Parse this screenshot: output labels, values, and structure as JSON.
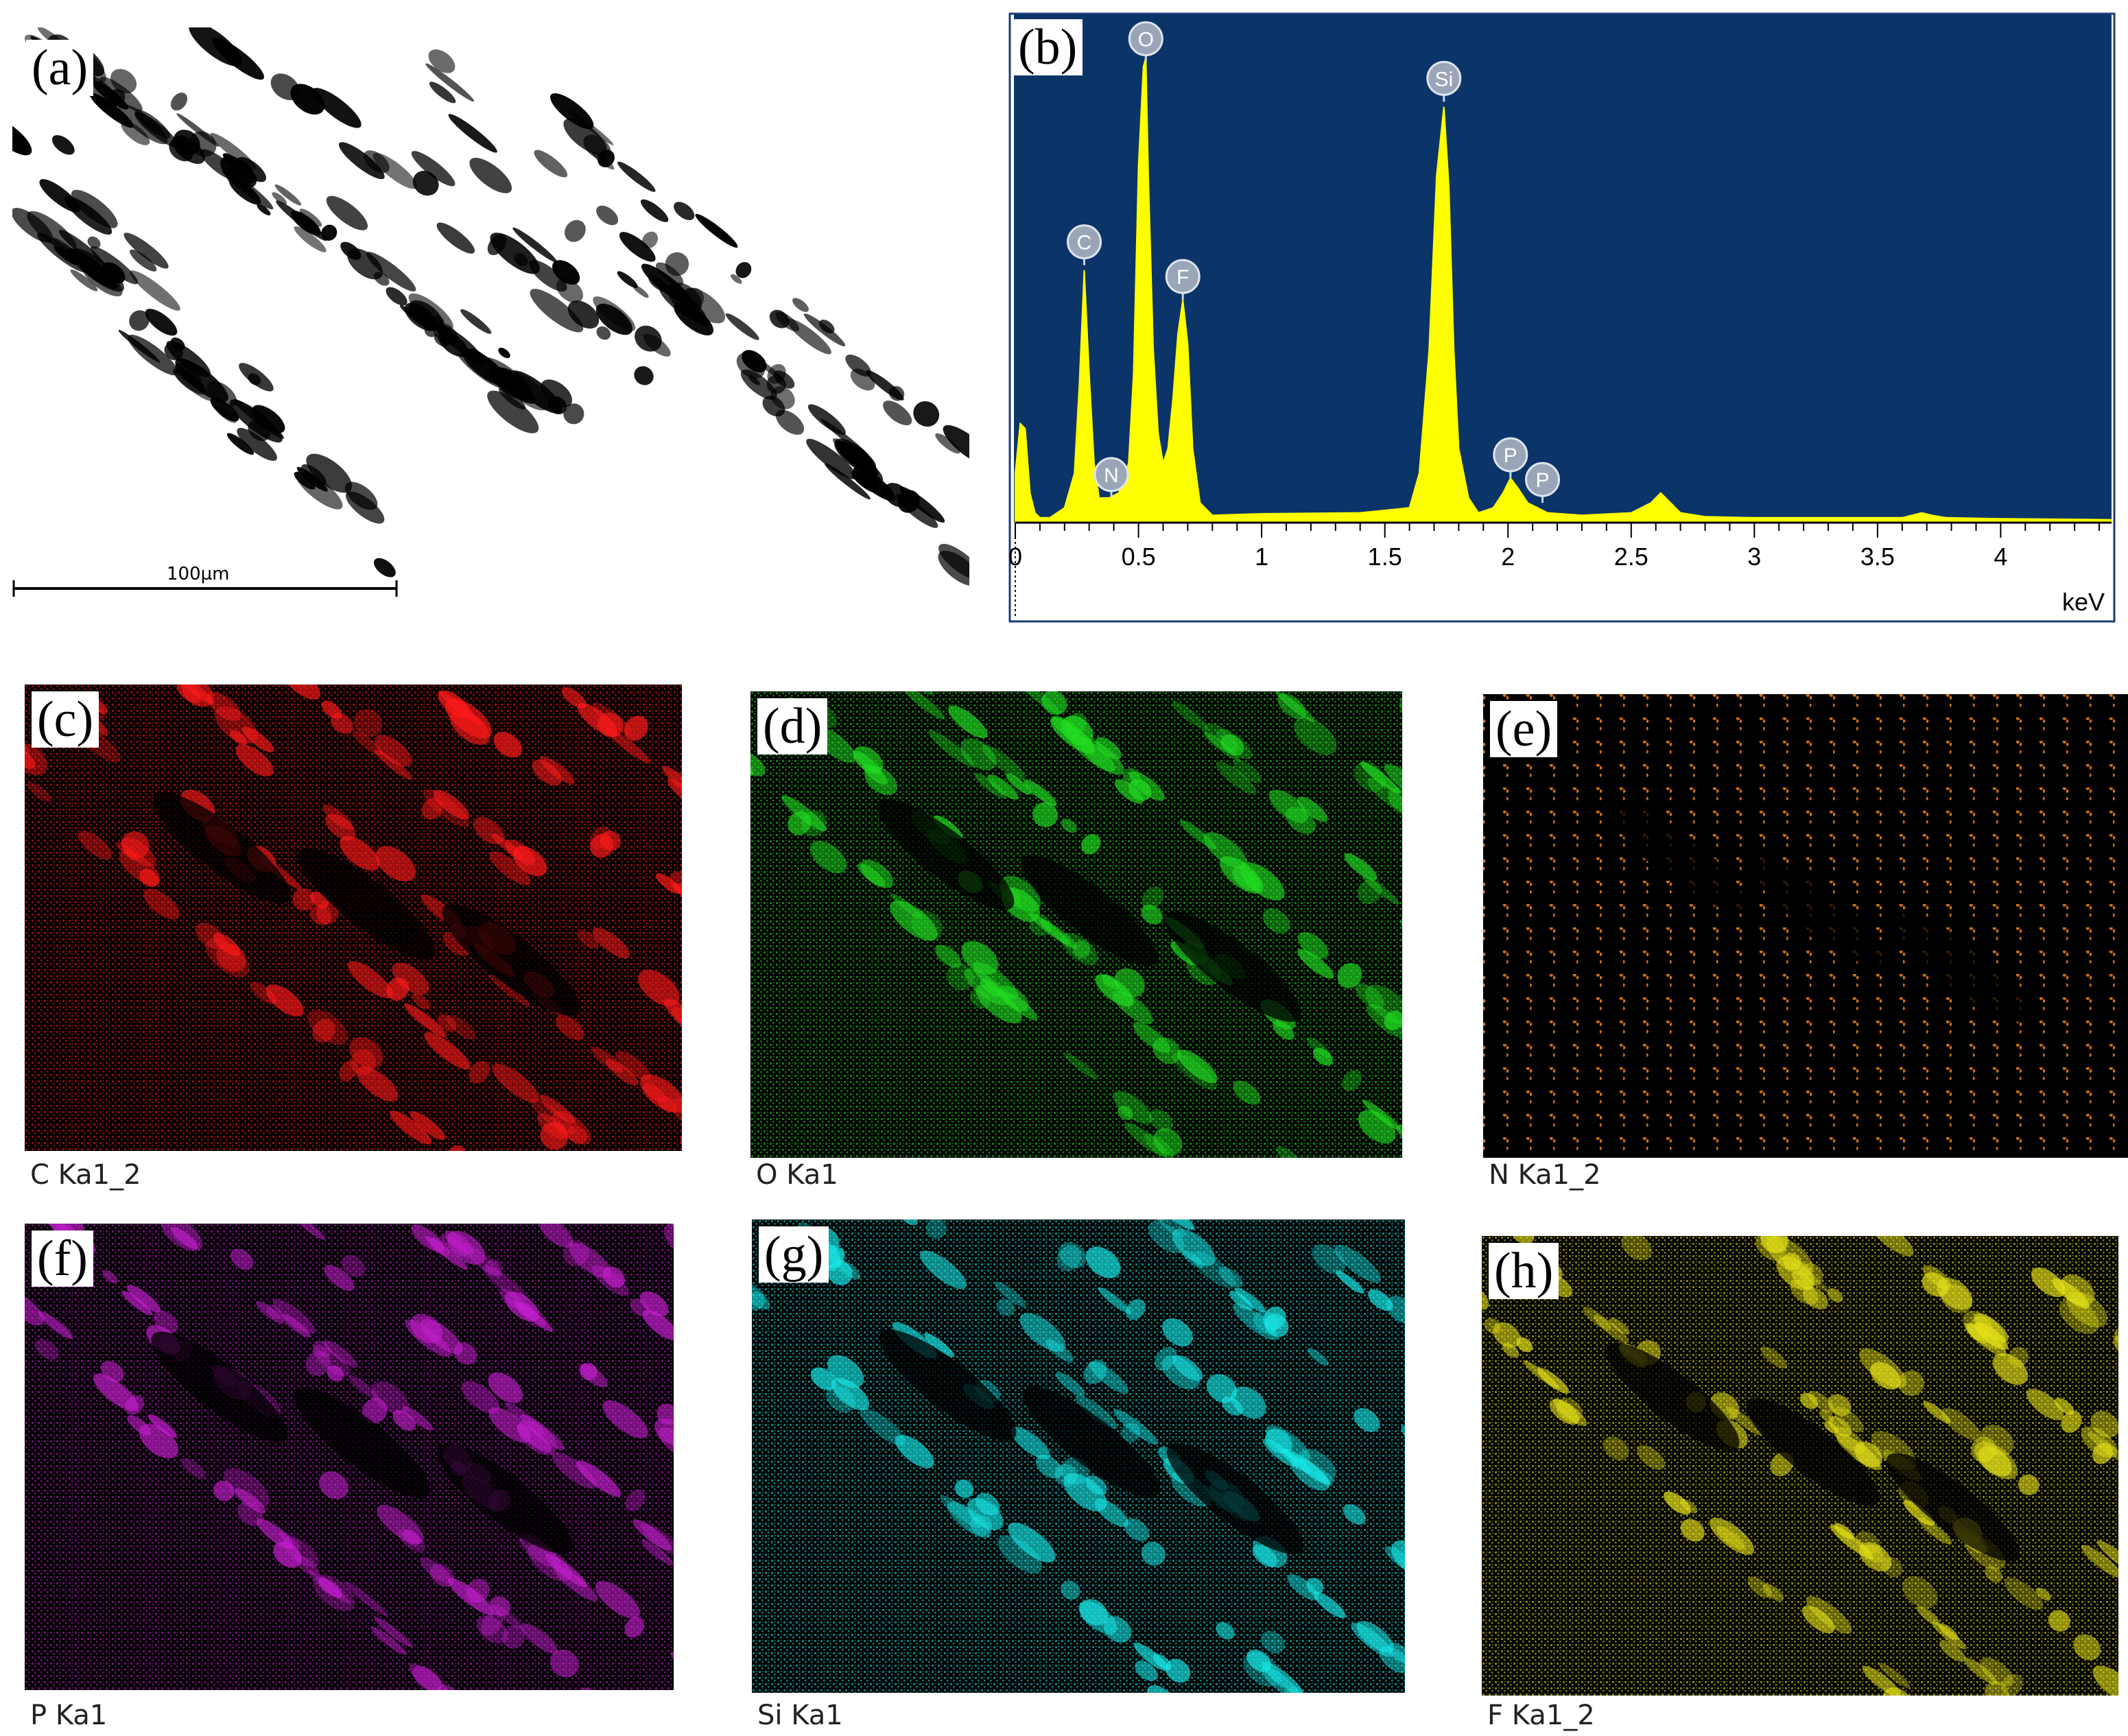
{
  "panel_labels": {
    "a": "(a)",
    "b": "(b)",
    "c": "(c)",
    "d": "(d)",
    "e": "(e)",
    "f": "(f)",
    "g": "(g)",
    "h": "(h)"
  },
  "sem": {
    "scale_bar_label": "100µm"
  },
  "maps": [
    {
      "key": "c",
      "caption": "C Ka1_2",
      "color": "#ff1a1a"
    },
    {
      "key": "d",
      "caption": "O Ka1",
      "color": "#22dd22"
    },
    {
      "key": "e",
      "caption": "N Ka1_2",
      "color": "#e07a10"
    },
    {
      "key": "f",
      "caption": "P Ka1",
      "color": "#c61fd0"
    },
    {
      "key": "g",
      "caption": "Si Ka1",
      "color": "#19e6e6"
    },
    {
      "key": "h",
      "caption": "F Ka1_2",
      "color": "#e6e21a"
    }
  ],
  "chart_data": {
    "type": "area",
    "xlabel": "keV",
    "xlim": [
      0,
      4.45
    ],
    "x_ticks": [
      "0",
      "0.5",
      "1",
      "1.5",
      "2",
      "2.5",
      "3",
      "3.5",
      "4"
    ],
    "background_color": "#0b3468",
    "fill_color": "#ffff00",
    "peaks": [
      {
        "label": "C",
        "x": 0.28,
        "y": 0.52
      },
      {
        "label": "N",
        "x": 0.39,
        "y": 0.05
      },
      {
        "label": "O",
        "x": 0.53,
        "y": 0.93
      },
      {
        "label": "F",
        "x": 0.68,
        "y": 0.45
      },
      {
        "label": "Si",
        "x": 1.74,
        "y": 0.85
      },
      {
        "label": "P",
        "x": 2.01,
        "y": 0.09
      },
      {
        "label": "P",
        "x": 2.14,
        "y": 0.04
      }
    ],
    "spectrum": {
      "x": [
        0,
        0.02,
        0.04,
        0.06,
        0.08,
        0.1,
        0.14,
        0.2,
        0.24,
        0.26,
        0.28,
        0.3,
        0.32,
        0.34,
        0.38,
        0.42,
        0.46,
        0.48,
        0.5,
        0.52,
        0.53,
        0.54,
        0.56,
        0.58,
        0.6,
        0.62,
        0.64,
        0.66,
        0.68,
        0.7,
        0.72,
        0.75,
        0.8,
        1.0,
        1.4,
        1.6,
        1.64,
        1.68,
        1.71,
        1.74,
        1.76,
        1.78,
        1.8,
        1.84,
        1.88,
        1.94,
        1.98,
        2.01,
        2.04,
        2.08,
        2.12,
        2.16,
        2.3,
        2.5,
        2.58,
        2.62,
        2.66,
        2.7,
        2.8,
        3.0,
        3.6,
        3.68,
        3.72,
        3.78,
        4.0,
        4.45
      ],
      "y": [
        0.1,
        0.2,
        0.19,
        0.06,
        0.02,
        0.01,
        0.01,
        0.03,
        0.1,
        0.28,
        0.51,
        0.3,
        0.12,
        0.05,
        0.05,
        0.06,
        0.12,
        0.3,
        0.72,
        0.92,
        0.94,
        0.7,
        0.35,
        0.18,
        0.12,
        0.15,
        0.25,
        0.38,
        0.45,
        0.36,
        0.15,
        0.04,
        0.015,
        0.018,
        0.02,
        0.03,
        0.1,
        0.35,
        0.7,
        0.84,
        0.68,
        0.35,
        0.15,
        0.05,
        0.02,
        0.03,
        0.06,
        0.09,
        0.07,
        0.04,
        0.03,
        0.02,
        0.015,
        0.02,
        0.04,
        0.06,
        0.04,
        0.02,
        0.012,
        0.01,
        0.01,
        0.02,
        0.015,
        0.01,
        0.008,
        0.006
      ]
    }
  }
}
